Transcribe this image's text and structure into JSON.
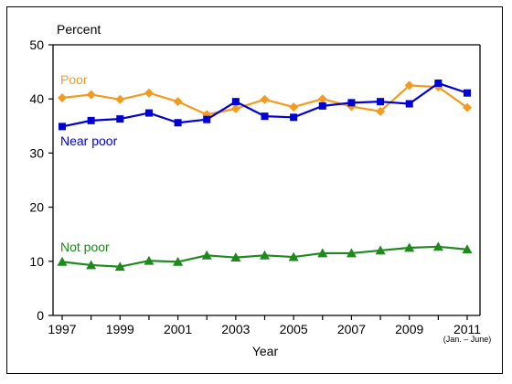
{
  "chart_data": {
    "type": "line",
    "ylabel": "Percent",
    "xlabel": "Year",
    "x_note": "(Jan. – June)",
    "ylim": [
      0,
      50
    ],
    "yticks": [
      0,
      10,
      20,
      30,
      40,
      50
    ],
    "x": [
      1997,
      1998,
      1999,
      2000,
      2001,
      2002,
      2003,
      2004,
      2005,
      2006,
      2007,
      2008,
      2009,
      2010,
      2011
    ],
    "xtick_labels": [
      "1997",
      "1999",
      "2001",
      "2003",
      "2005",
      "2007",
      "2009",
      "2011"
    ],
    "grid": false,
    "series": [
      {
        "name": "Poor",
        "color": "#f39b1f",
        "marker": "diamond",
        "values": [
          40.2,
          40.8,
          39.9,
          41.1,
          39.5,
          37.1,
          38.2,
          39.9,
          38.5,
          40.0,
          38.6,
          37.7,
          42.5,
          42.2,
          38.4
        ]
      },
      {
        "name": "Near poor",
        "color": "#0000d6",
        "marker": "square",
        "values": [
          34.9,
          36.0,
          36.3,
          37.4,
          35.6,
          36.2,
          39.5,
          36.8,
          36.6,
          38.7,
          39.3,
          39.5,
          39.1,
          42.9,
          41.1
        ]
      },
      {
        "name": "Not poor",
        "color": "#1e8a1e",
        "marker": "triangle",
        "values": [
          9.9,
          9.3,
          9.0,
          10.1,
          9.9,
          11.1,
          10.7,
          11.1,
          10.8,
          11.5,
          11.5,
          12.0,
          12.5,
          12.7,
          12.2
        ]
      }
    ]
  }
}
